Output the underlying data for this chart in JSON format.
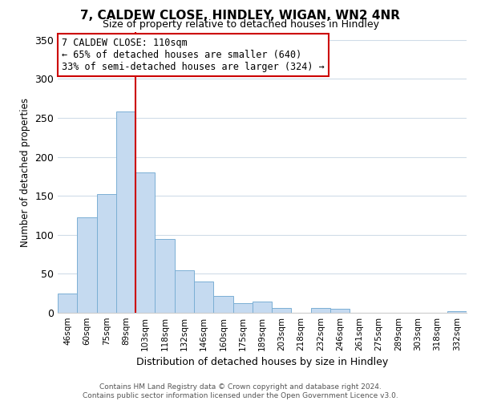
{
  "title": "7, CALDEW CLOSE, HINDLEY, WIGAN, WN2 4NR",
  "subtitle": "Size of property relative to detached houses in Hindley",
  "xlabel": "Distribution of detached houses by size in Hindley",
  "ylabel": "Number of detached properties",
  "bar_labels": [
    "46sqm",
    "60sqm",
    "75sqm",
    "89sqm",
    "103sqm",
    "118sqm",
    "132sqm",
    "146sqm",
    "160sqm",
    "175sqm",
    "189sqm",
    "203sqm",
    "218sqm",
    "232sqm",
    "246sqm",
    "261sqm",
    "275sqm",
    "289sqm",
    "303sqm",
    "318sqm",
    "332sqm"
  ],
  "bar_values": [
    25,
    122,
    152,
    258,
    180,
    95,
    55,
    40,
    22,
    12,
    14,
    6,
    0,
    6,
    5,
    0,
    0,
    0,
    0,
    0,
    2
  ],
  "bar_color": "#c5daf0",
  "bar_edge_color": "#7bafd4",
  "vline_x": 4.0,
  "vline_color": "#cc0000",
  "annotation_title": "7 CALDEW CLOSE: 110sqm",
  "annotation_line1": "← 65% of detached houses are smaller (640)",
  "annotation_line2": "33% of semi-detached houses are larger (324) →",
  "annotation_box_color": "#ffffff",
  "annotation_box_edgecolor": "#cc0000",
  "ylim": [
    0,
    360
  ],
  "yticks": [
    0,
    50,
    100,
    150,
    200,
    250,
    300,
    350
  ],
  "footer_line1": "Contains HM Land Registry data © Crown copyright and database right 2024.",
  "footer_line2": "Contains public sector information licensed under the Open Government Licence v3.0.",
  "background_color": "#ffffff",
  "grid_color": "#d0dce8"
}
